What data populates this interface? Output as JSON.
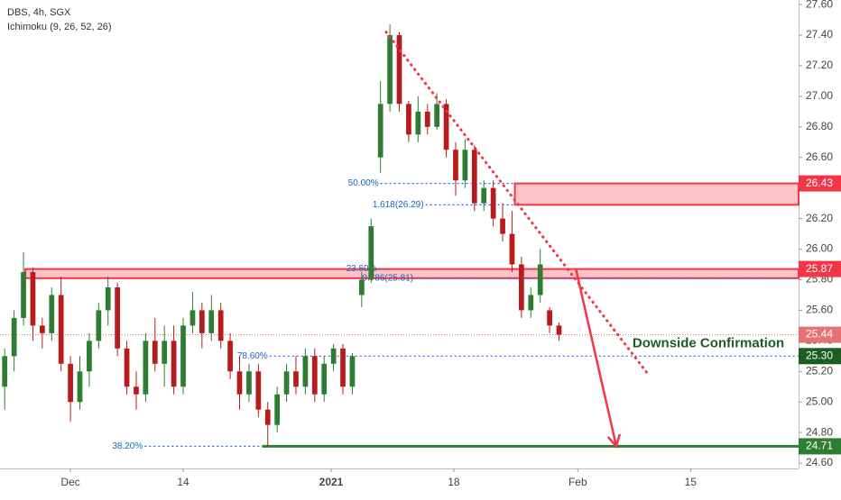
{
  "chart_data": {
    "type": "candlestick",
    "title": "DBS, 4h, SGX",
    "subtitle": "Ichimoku (9, 26, 52, 26)",
    "up_color": "#2e7d32",
    "down_color": "#b71c1c",
    "open": [
      25.1,
      25.3,
      25.55,
      25.85,
      25.5,
      25.45,
      25.7,
      25.25,
      25.0,
      25.2,
      25.4,
      25.6,
      25.75,
      25.35,
      25.1,
      25.05,
      25.4,
      25.25,
      25.4,
      25.1,
      25.5,
      25.6,
      25.45,
      25.6,
      25.4,
      25.2,
      25.05,
      25.2,
      24.95,
      24.85,
      25.05,
      25.2,
      25.1,
      25.3,
      25.05,
      25.25,
      25.35,
      25.1,
      25.7,
      25.8,
      26.6,
      26.95,
      27.4,
      26.95,
      26.75,
      26.9,
      26.8,
      26.95,
      26.65,
      26.45,
      26.65,
      26.3,
      26.4,
      26.2,
      26.1,
      25.9,
      25.6,
      25.7,
      25.6,
      25.5
    ],
    "high": [
      25.35,
      25.6,
      25.98,
      25.88,
      25.55,
      25.75,
      25.82,
      25.3,
      25.3,
      25.45,
      25.65,
      25.82,
      25.78,
      25.4,
      25.2,
      25.45,
      25.55,
      25.5,
      25.5,
      25.55,
      25.72,
      25.65,
      25.7,
      25.65,
      25.45,
      25.3,
      25.25,
      25.25,
      25.0,
      25.1,
      25.25,
      25.3,
      25.35,
      25.35,
      25.3,
      25.38,
      25.38,
      25.32,
      25.85,
      26.2,
      27.1,
      27.47,
      27.42,
      26.97,
      27.0,
      26.95,
      27.02,
      26.98,
      26.7,
      26.72,
      26.68,
      26.45,
      26.45,
      26.3,
      26.25,
      25.95,
      25.75,
      26.0,
      25.62,
      25.52
    ],
    "low": [
      24.95,
      25.2,
      25.5,
      25.4,
      25.35,
      25.4,
      25.2,
      24.87,
      24.95,
      25.1,
      25.35,
      25.5,
      25.3,
      25.05,
      24.95,
      25.0,
      25.2,
      25.1,
      25.05,
      25.05,
      25.45,
      25.35,
      25.4,
      25.35,
      25.15,
      24.95,
      25.0,
      24.9,
      24.71,
      24.8,
      25.0,
      25.05,
      25.05,
      25.0,
      25.0,
      25.2,
      25.05,
      25.05,
      25.62,
      25.78,
      26.5,
      26.9,
      26.9,
      26.7,
      26.7,
      26.75,
      26.78,
      26.6,
      26.35,
      26.4,
      26.25,
      26.25,
      26.15,
      26.05,
      25.85,
      25.55,
      25.55,
      25.65,
      25.45,
      25.4
    ],
    "close": [
      25.3,
      25.55,
      25.85,
      25.5,
      25.45,
      25.7,
      25.25,
      25.0,
      25.2,
      25.4,
      25.6,
      25.75,
      25.35,
      25.1,
      25.05,
      25.4,
      25.25,
      25.4,
      25.1,
      25.5,
      25.6,
      25.45,
      25.6,
      25.4,
      25.2,
      25.05,
      25.2,
      24.95,
      24.85,
      25.05,
      25.2,
      25.1,
      25.3,
      25.05,
      25.25,
      25.35,
      25.1,
      25.3,
      25.8,
      26.15,
      26.95,
      27.4,
      26.95,
      26.75,
      26.9,
      26.8,
      26.95,
      26.65,
      26.45,
      26.65,
      26.3,
      26.4,
      26.2,
      26.1,
      25.9,
      25.6,
      25.7,
      25.9,
      25.5,
      25.44
    ],
    "xlim": [
      -0.5,
      84.5
    ],
    "xticks": [
      {
        "value": 7,
        "label": "Dec"
      },
      {
        "value": 19,
        "label": "14"
      },
      {
        "value": 34.75,
        "label": "2021"
      },
      {
        "value": 47.8,
        "label": "18"
      },
      {
        "value": 61,
        "label": "Feb"
      },
      {
        "value": 73,
        "label": "15"
      }
    ],
    "ylim": [
      24.565,
      27.63
    ],
    "yticks": [
      {
        "value": 24.6,
        "label": "24.60"
      },
      {
        "value": 24.8,
        "label": "24.80"
      },
      {
        "value": 25,
        "label": "25.00"
      },
      {
        "value": 25.2,
        "label": "25.20"
      },
      {
        "value": 25.4,
        "label": "25.40"
      },
      {
        "value": 25.6,
        "label": "25.60"
      },
      {
        "value": 25.8,
        "label": "25.80"
      },
      {
        "value": 26,
        "label": "26.00"
      },
      {
        "value": 26.2,
        "label": "26.20"
      },
      {
        "value": 26.4,
        "label": "26.40"
      },
      {
        "value": 26.6,
        "label": "26.60"
      },
      {
        "value": 26.8,
        "label": "26.80"
      },
      {
        "value": 27,
        "label": "27.00"
      },
      {
        "value": 27.2,
        "label": "27.20"
      },
      {
        "value": 27.4,
        "label": "27.40"
      },
      {
        "value": 27.6,
        "label": "27.60"
      }
    ],
    "zones": [
      {
        "low": 26.29,
        "high": 26.43,
        "x_start": 54.3,
        "color": "#f23645"
      },
      {
        "low": 25.81,
        "high": 25.87,
        "x_start": 2.2,
        "color": "#f23645"
      }
    ],
    "support": {
      "value": 24.71,
      "x_start": 27.4,
      "color": "#2e7d32"
    },
    "last_price": {
      "value": 25.44,
      "color": "#e57373"
    },
    "fib_levels": [
      {
        "label": "50.00%",
        "value": 26.43,
        "x": 39.8,
        "x_end": 54.3
      },
      {
        "label": "1.618(26.29)",
        "value": 26.29,
        "x": 44.6,
        "x_end": 54.3
      },
      {
        "label": "23.60%",
        "value": 25.87,
        "x": 39.6,
        "x_end": 40.5
      },
      {
        "label": "0.786(25.81)",
        "value": 25.81,
        "x": 43.5,
        "x_end": 84.5
      },
      {
        "label": "78.60%",
        "value": 25.3,
        "x": 28.0,
        "x_end": 84.5
      },
      {
        "label": "38.20%",
        "value": 24.71,
        "x": 14.7,
        "x_end": 27.4
      }
    ],
    "price_tags": [
      {
        "value": 26.43,
        "color": "#f23645"
      },
      {
        "value": 25.87,
        "color": "#f23645"
      },
      {
        "value": 25.44,
        "color": "#e57373"
      },
      {
        "value": {
          "value": 25.3,
          "label": "25.30"
        },
        "color": "#1b5e20"
      },
      {
        "value": 24.71,
        "color": "#2e7d32"
      }
    ],
    "trendline": {
      "x": [
        40.6,
        68.5
      ],
      "y": [
        27.42,
        25.18
      ],
      "color": "#f23645"
    },
    "arrow": {
      "x": [
        60.8,
        65.1
      ],
      "y": [
        25.87,
        24.71
      ],
      "color": "#f23645"
    },
    "annotation": {
      "text": "Downside Confirmation",
      "x": 74.9,
      "y": 25.38,
      "color": "#1b5e20"
    }
  }
}
